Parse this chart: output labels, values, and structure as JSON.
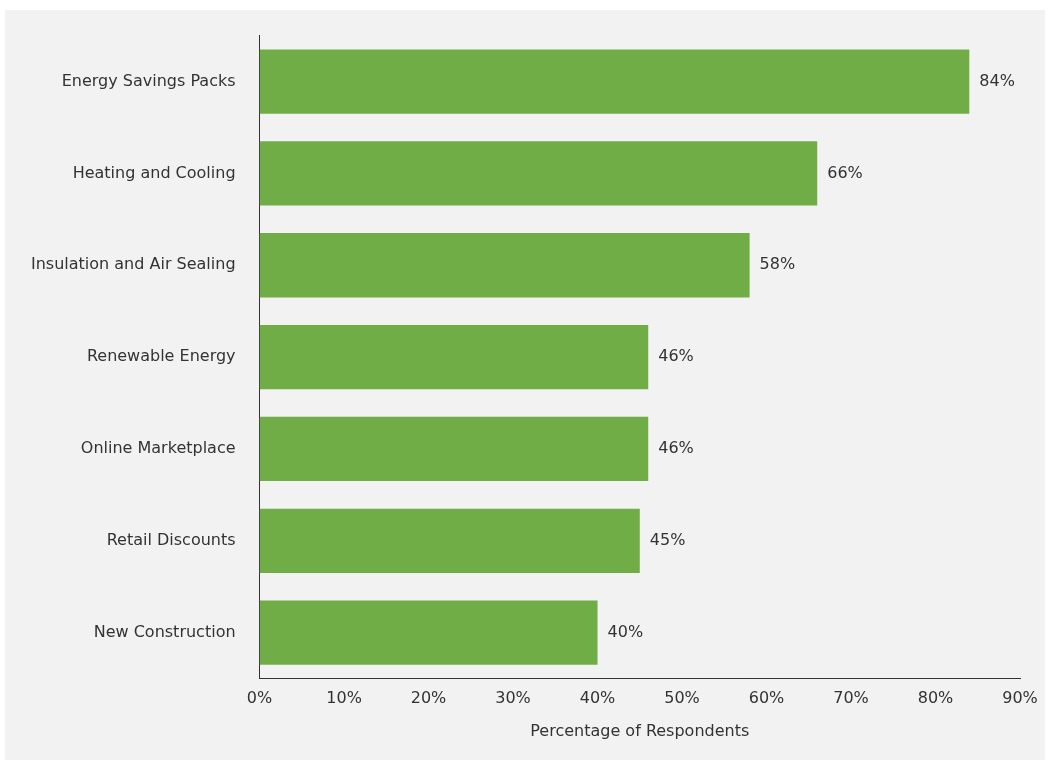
{
  "chart_data": {
    "type": "bar",
    "orientation": "horizontal",
    "xlabel": "Percentage of Respondents",
    "categories": [
      "Energy Savings Packs",
      "Heating and Cooling",
      "Insulation and Air Sealing",
      "Renewable Energy",
      "Online Marketplace",
      "Retail Discounts",
      "New Construction"
    ],
    "values": [
      84,
      66,
      58,
      46,
      46,
      45,
      40
    ],
    "value_labels": [
      "84%",
      "66%",
      "58%",
      "46%",
      "46%",
      "45%",
      "40%"
    ],
    "color": "#70ad47",
    "xlim": [
      0,
      90
    ],
    "xticks": [
      {
        "value": 0,
        "label": "0%"
      },
      {
        "value": 10,
        "label": "10%"
      },
      {
        "value": 20,
        "label": "20%"
      },
      {
        "value": 30,
        "label": "30%"
      },
      {
        "value": 40,
        "label": "40%"
      },
      {
        "value": 50,
        "label": "50%"
      },
      {
        "value": 60,
        "label": "60%"
      },
      {
        "value": 70,
        "label": "70%"
      },
      {
        "value": 80,
        "label": "80%"
      },
      {
        "value": 90,
        "label": "90%"
      }
    ],
    "grid": false,
    "legend": false
  }
}
